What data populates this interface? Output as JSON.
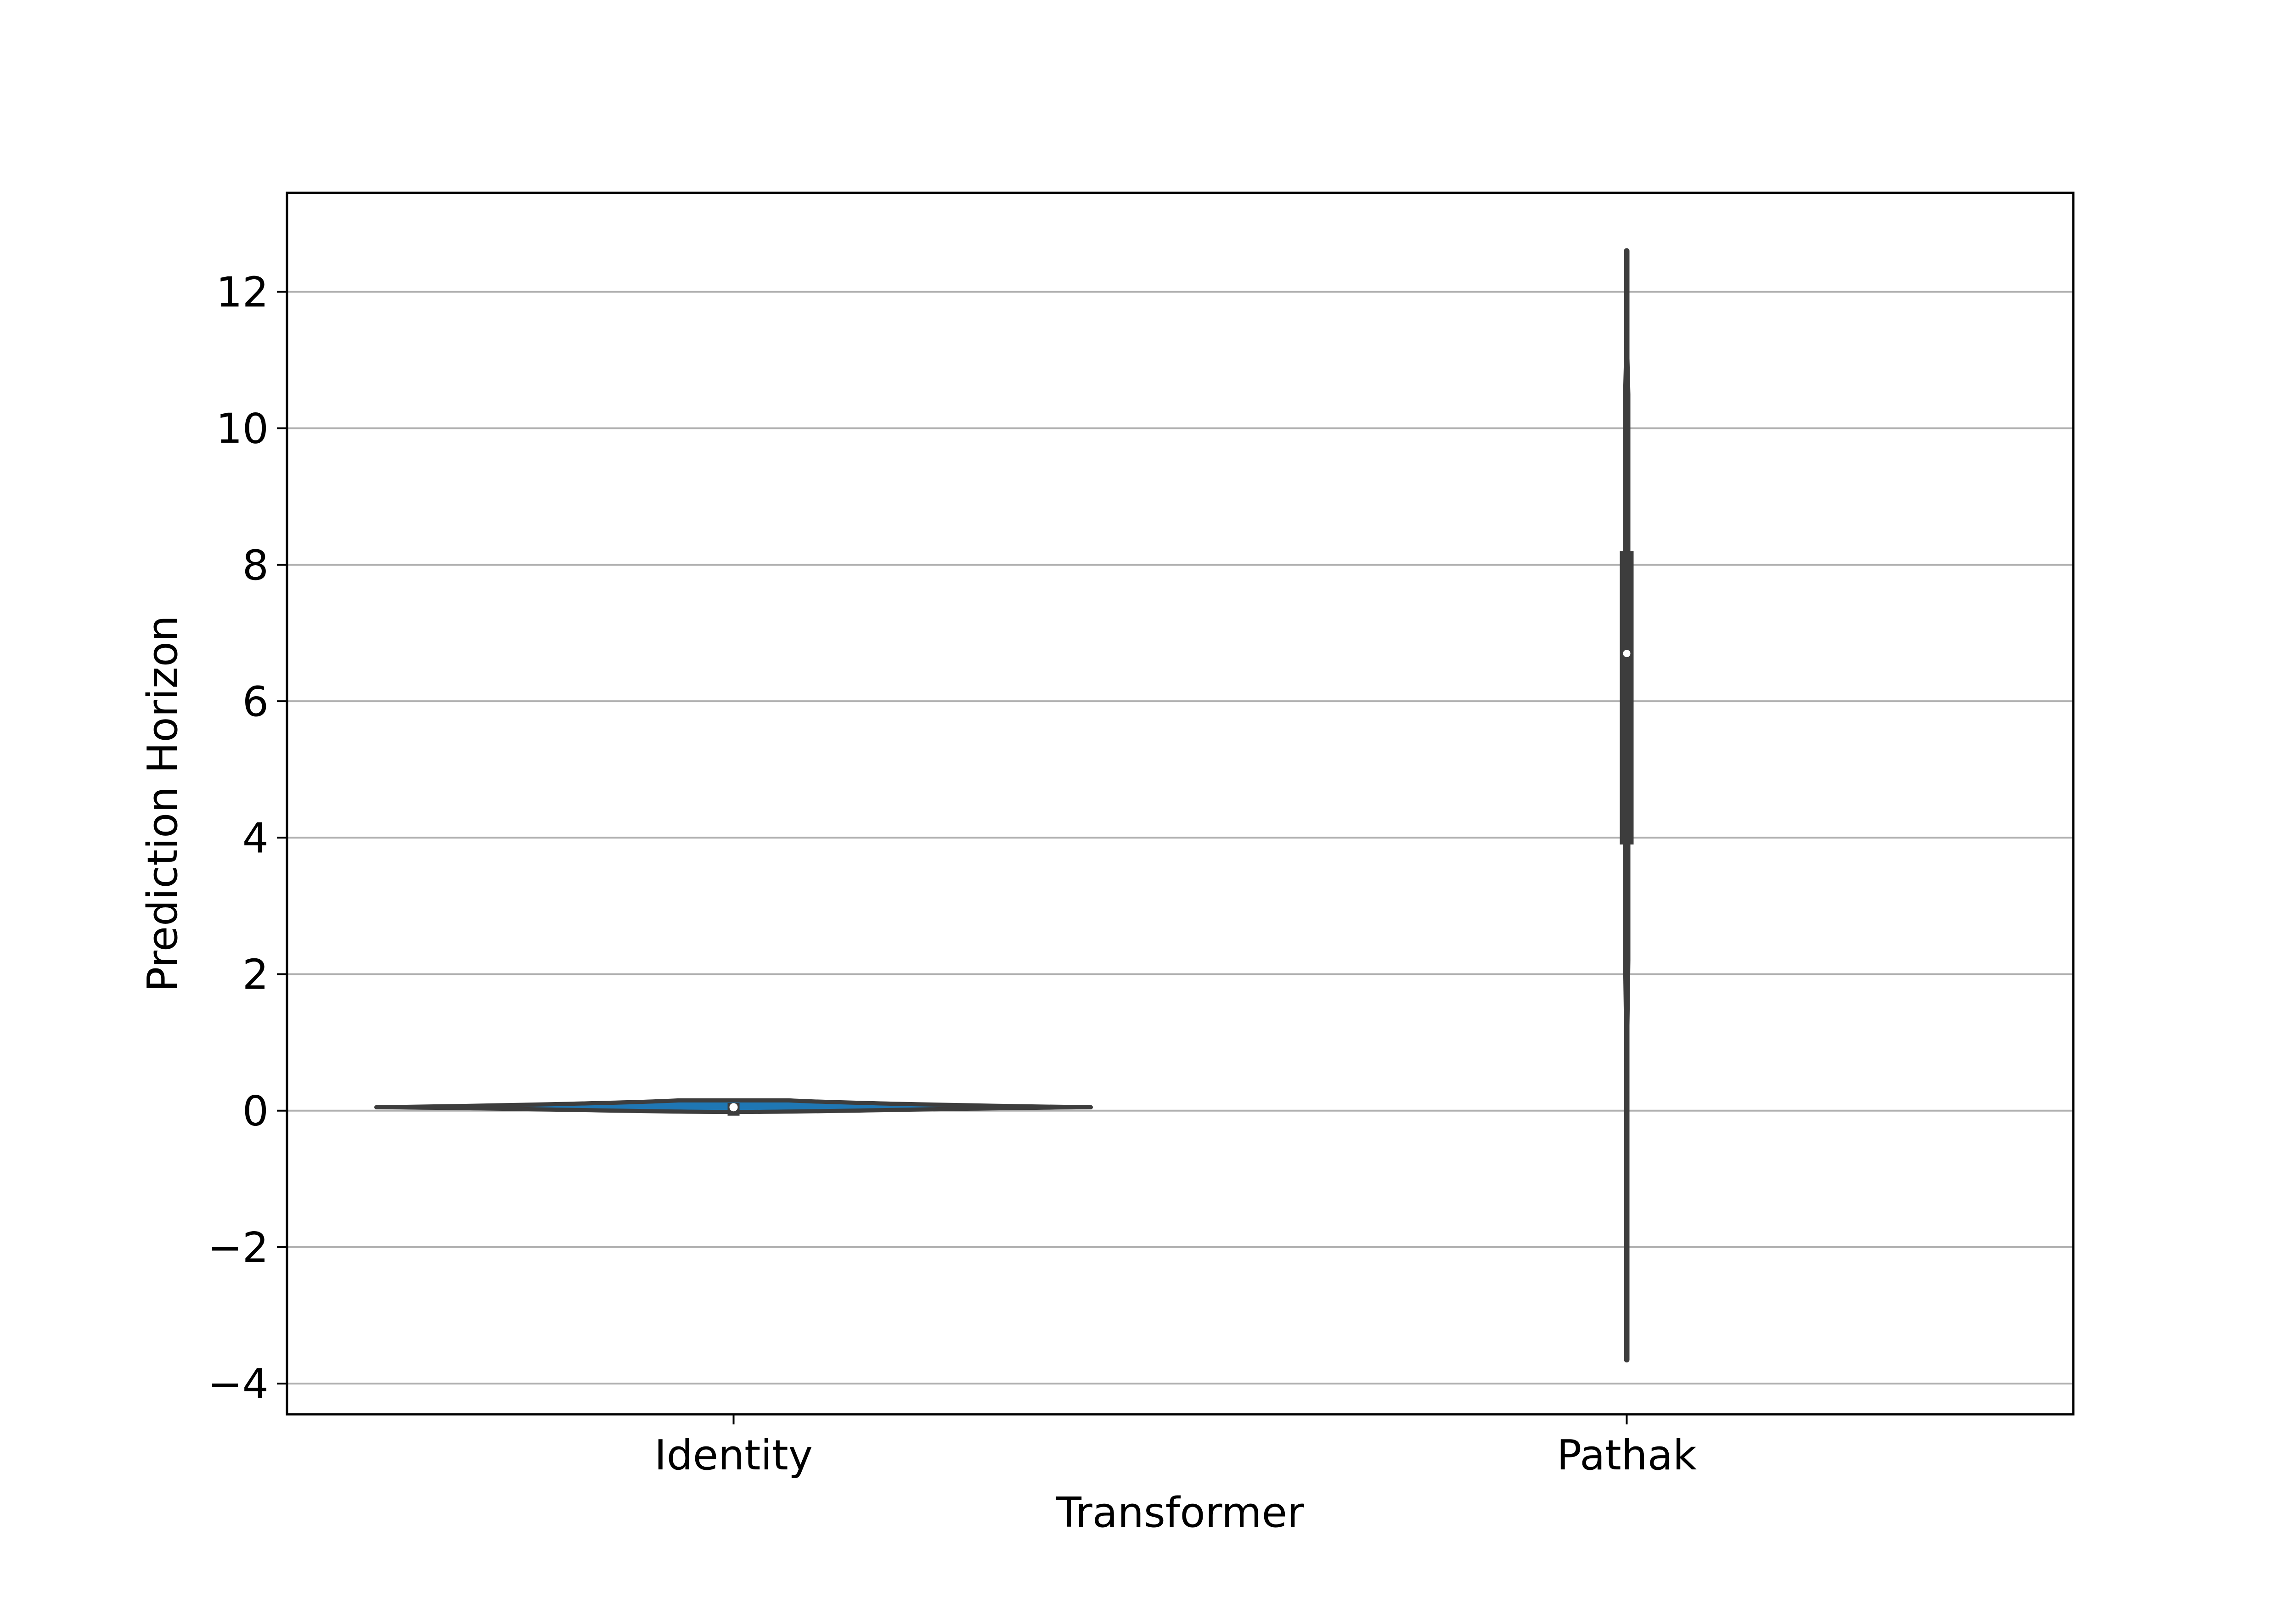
{
  "chart_data": {
    "type": "violin",
    "xlabel": "Transformer",
    "ylabel": "Prediction Horizon",
    "ylim": [
      -4.45,
      13.45
    ],
    "yticks": [
      -4,
      -2,
      0,
      2,
      4,
      6,
      8,
      10,
      12
    ],
    "ytick_labels": [
      "−4",
      "−2",
      "0",
      "2",
      "4",
      "6",
      "8",
      "10",
      "12"
    ],
    "categories": [
      "Identity",
      "Pathak"
    ],
    "grid": {
      "y": true,
      "x": false
    },
    "colors": {
      "violin_fill": "#1f77b4",
      "violin_edge": "#3d3d3d",
      "box": "#3d3d3d",
      "median": "#ffffff",
      "grid": "#b0b0b0",
      "frame": "#000000"
    },
    "series": [
      {
        "category": "Identity",
        "min": -0.02,
        "q1": -0.02,
        "median": 0.05,
        "q3": 0.1,
        "max": 0.15,
        "density_width": 1.0
      },
      {
        "category": "Pathak",
        "min": -3.65,
        "q1": 3.9,
        "median": 6.7,
        "q3": 8.2,
        "max": 12.6,
        "density_width": 0.02
      }
    ]
  }
}
